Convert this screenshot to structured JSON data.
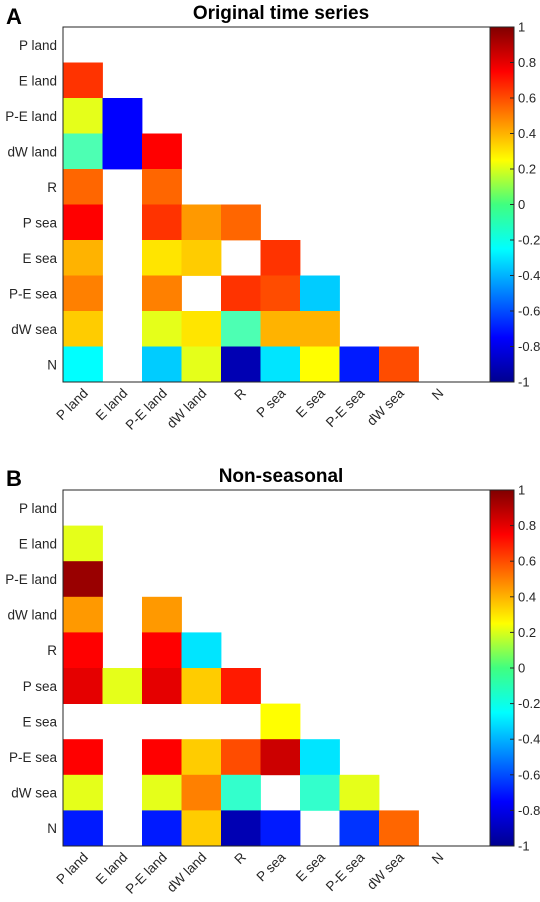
{
  "figure": {
    "panels": [
      {
        "letter": "A",
        "title": "Original time series"
      },
      {
        "letter": "B",
        "title": "Non-seasonal"
      }
    ]
  },
  "chart_data": [
    {
      "type": "heatmap",
      "panel_letter": "A",
      "title": "Original time series",
      "xlabels": [
        "P land",
        "E land",
        "P-E land",
        "dW land",
        "R",
        "P sea",
        "E sea",
        "P-E sea",
        "dW sea",
        "N"
      ],
      "ylabels": [
        "P land",
        "E land",
        "P-E land",
        "dW land",
        "R",
        "P sea",
        "E sea",
        "P-E sea",
        "dW sea",
        "N"
      ],
      "values": [
        [
          null,
          null,
          null,
          null,
          null,
          null,
          null,
          null,
          null,
          null
        ],
        [
          0.65,
          null,
          null,
          null,
          null,
          null,
          null,
          null,
          null,
          null
        ],
        [
          0.2,
          -0.75,
          null,
          null,
          null,
          null,
          null,
          null,
          null,
          null
        ],
        [
          -0.1,
          -0.75,
          0.75,
          null,
          null,
          null,
          null,
          null,
          null,
          null
        ],
        [
          0.55,
          null,
          0.55,
          null,
          null,
          null,
          null,
          null,
          null,
          null
        ],
        [
          0.75,
          null,
          0.65,
          0.45,
          0.55,
          null,
          null,
          null,
          null,
          null
        ],
        [
          0.4,
          null,
          0.3,
          0.35,
          null,
          0.65,
          null,
          null,
          null,
          null
        ],
        [
          0.5,
          null,
          0.5,
          null,
          0.65,
          0.6,
          -0.35,
          null,
          null,
          null
        ],
        [
          0.35,
          null,
          0.2,
          0.3,
          -0.1,
          0.4,
          0.4,
          null,
          null,
          null
        ],
        [
          -0.25,
          null,
          -0.35,
          0.2,
          -0.9,
          -0.3,
          0.25,
          -0.7,
          0.6,
          null
        ]
      ],
      "colorbar": {
        "min": -1,
        "max": 1,
        "ticks": [
          "1",
          "0.8",
          "0.6",
          "0.4",
          "0.2",
          "0",
          "-0.2",
          "-0.4",
          "-0.6",
          "-0.8",
          "-1"
        ],
        "colormap": "jet"
      }
    },
    {
      "type": "heatmap",
      "panel_letter": "B",
      "title": "Non-seasonal",
      "xlabels": [
        "P land",
        "E land",
        "P-E land",
        "dW land",
        "R",
        "P sea",
        "E sea",
        "P-E sea",
        "dW sea",
        "N"
      ],
      "ylabels": [
        "P land",
        "E land",
        "P-E land",
        "dW land",
        "R",
        "P sea",
        "E sea",
        "P-E sea",
        "dW sea",
        "N"
      ],
      "values": [
        [
          null,
          null,
          null,
          null,
          null,
          null,
          null,
          null,
          null,
          null
        ],
        [
          0.2,
          null,
          null,
          null,
          null,
          null,
          null,
          null,
          null,
          null
        ],
        [
          0.95,
          null,
          null,
          null,
          null,
          null,
          null,
          null,
          null,
          null
        ],
        [
          0.45,
          null,
          0.45,
          null,
          null,
          null,
          null,
          null,
          null,
          null
        ],
        [
          0.75,
          null,
          0.75,
          -0.3,
          null,
          null,
          null,
          null,
          null,
          null
        ],
        [
          0.8,
          0.2,
          0.8,
          0.35,
          0.7,
          null,
          null,
          null,
          null,
          null
        ],
        [
          null,
          null,
          null,
          null,
          null,
          0.25,
          null,
          null,
          null,
          null
        ],
        [
          0.75,
          null,
          0.75,
          0.35,
          0.6,
          0.85,
          -0.3,
          null,
          null,
          null
        ],
        [
          0.2,
          null,
          0.2,
          0.5,
          -0.15,
          null,
          -0.15,
          0.2,
          null,
          null
        ],
        [
          -0.7,
          null,
          -0.7,
          0.35,
          -0.9,
          -0.7,
          null,
          -0.65,
          0.55,
          null
        ]
      ],
      "colorbar": {
        "min": -1,
        "max": 1,
        "ticks": [
          "1",
          "0.8",
          "0.6",
          "0.4",
          "0.2",
          "0",
          "-0.2",
          "-0.4",
          "-0.6",
          "-0.8",
          "-1"
        ],
        "colormap": "jet"
      }
    }
  ]
}
